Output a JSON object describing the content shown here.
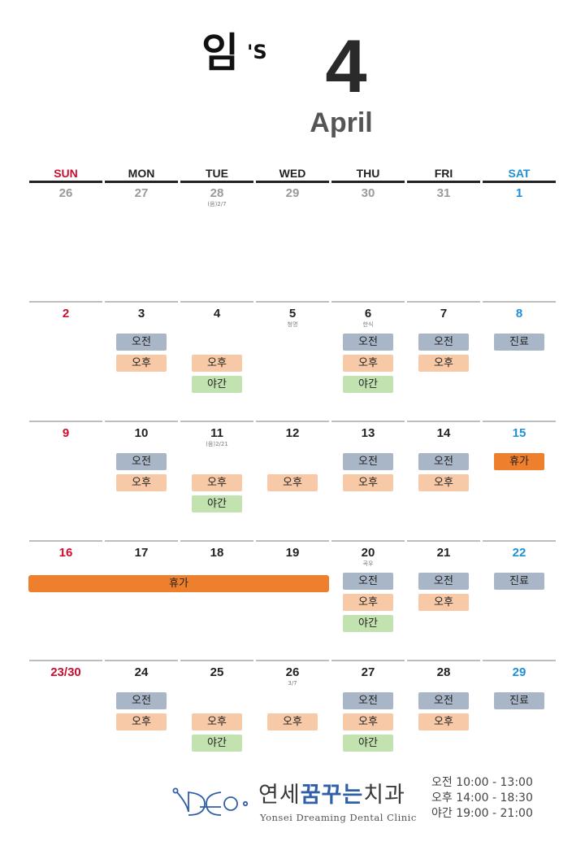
{
  "header": {
    "owner": "임",
    "owner_suffix": "'S",
    "month_number": "4",
    "month_name": "April"
  },
  "weekdays": [
    "SUN",
    "MON",
    "TUE",
    "WED",
    "THU",
    "FRI",
    "SAT"
  ],
  "weeks": [
    {
      "days": [
        {
          "n": "26",
          "tone": "gray"
        },
        {
          "n": "27",
          "tone": "gray"
        },
        {
          "n": "28",
          "tone": "gray",
          "sub": "(음)2/7"
        },
        {
          "n": "29",
          "tone": "gray"
        },
        {
          "n": "30",
          "tone": "gray"
        },
        {
          "n": "31",
          "tone": "gray"
        },
        {
          "n": "1",
          "tone": "blue"
        }
      ]
    },
    {
      "days": [
        {
          "n": "2",
          "tone": "red"
        },
        {
          "n": "3",
          "badges": [
            "오전",
            "오후"
          ]
        },
        {
          "n": "4",
          "badges": [
            "",
            "오후",
            "야간"
          ]
        },
        {
          "n": "5",
          "sub": "청명"
        },
        {
          "n": "6",
          "sub": "한식",
          "badges": [
            "오전",
            "오후",
            "야간"
          ]
        },
        {
          "n": "7",
          "badges": [
            "오전",
            "오후"
          ]
        },
        {
          "n": "8",
          "tone": "blue",
          "badges": [
            "진료"
          ]
        }
      ]
    },
    {
      "days": [
        {
          "n": "9",
          "tone": "red"
        },
        {
          "n": "10",
          "badges": [
            "오전",
            "오후"
          ]
        },
        {
          "n": "11",
          "sub": "(음)2/21",
          "badges": [
            "",
            "오후",
            "야간"
          ]
        },
        {
          "n": "12",
          "badges": [
            "",
            "오후"
          ]
        },
        {
          "n": "13",
          "badges": [
            "오전",
            "오후"
          ]
        },
        {
          "n": "14",
          "badges": [
            "오전",
            "오후"
          ]
        },
        {
          "n": "15",
          "tone": "blue",
          "badges": [
            "휴가"
          ]
        }
      ]
    },
    {
      "days": [
        {
          "n": "16",
          "tone": "red"
        },
        {
          "n": "17"
        },
        {
          "n": "18"
        },
        {
          "n": "19"
        },
        {
          "n": "20",
          "sub": "곡우",
          "badges": [
            "오전",
            "오후",
            "야간"
          ]
        },
        {
          "n": "21",
          "badges": [
            "오전",
            "오후"
          ]
        },
        {
          "n": "22",
          "tone": "blue",
          "badges": [
            "진료"
          ]
        }
      ],
      "span_label": "휴가"
    },
    {
      "days": [
        {
          "n": "23/30",
          "tone": "red"
        },
        {
          "n": "24",
          "badges": [
            "오전",
            "오후"
          ]
        },
        {
          "n": "25",
          "badges": [
            "",
            "오후",
            "야간"
          ]
        },
        {
          "n": "26",
          "sub": "3/7",
          "badges": [
            "",
            "오후"
          ]
        },
        {
          "n": "27",
          "badges": [
            "오전",
            "오후",
            "야간"
          ]
        },
        {
          "n": "28",
          "badges": [
            "오전",
            "오후"
          ]
        },
        {
          "n": "29",
          "tone": "blue",
          "badges": [
            "진료"
          ]
        }
      ]
    }
  ],
  "footer": {
    "clinic_name_a": "연세",
    "clinic_name_b": "꿈꾸는",
    "clinic_name_c": "치과",
    "clinic_name_en": "Yonsei Dreaming Dental Clinic",
    "hours": [
      "오전 10:00 - 13:00",
      "오후 14:00 - 18:30",
      "야간 19:00 - 21:00"
    ]
  },
  "colors": {
    "sunday": "#c8102e",
    "saturday": "#1e90d6",
    "morning": "#a9b6c8",
    "afternoon": "#f8c9a7",
    "night": "#c2e2b0",
    "vacation": "#ee7f2d",
    "brand": "#2f5fa8"
  }
}
